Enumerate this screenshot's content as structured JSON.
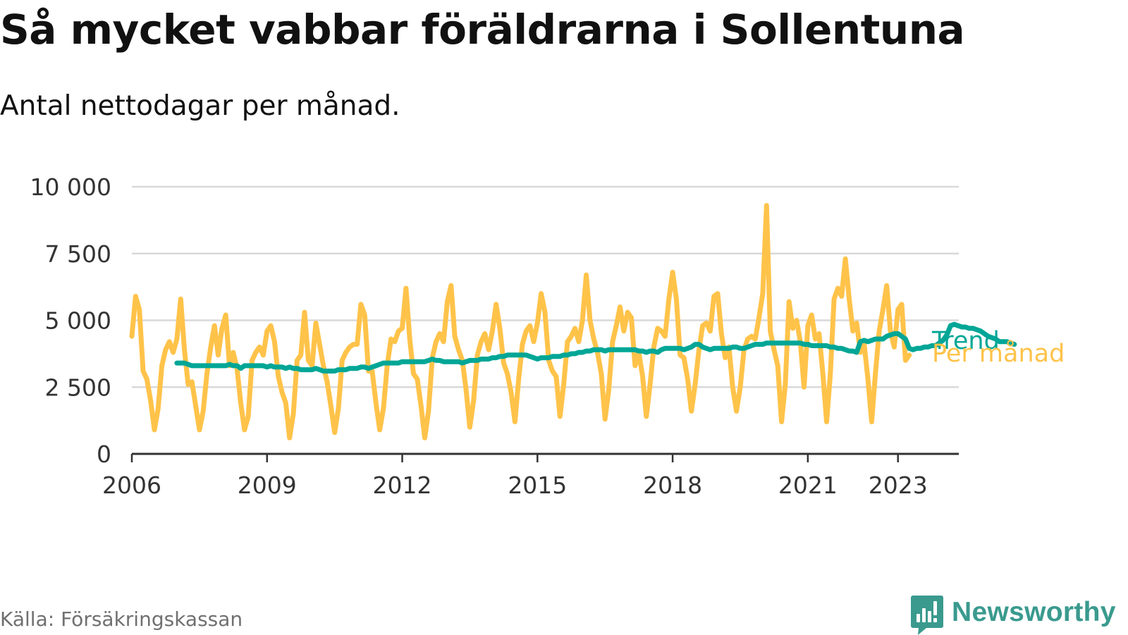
{
  "title": "Så mycket vabbar föräldrarna i Sollentuna",
  "subtitle": "Antal nettodagar per månad.",
  "source": "Källa: Försäkringskassan",
  "brand": "Newsworthy",
  "colors": {
    "monthly": "#ffc34a",
    "trend": "#00a696",
    "grid": "#d9d9d9",
    "axis": "#333333",
    "brand": "#3a9a8e"
  },
  "chart_data": {
    "type": "line",
    "title": "Så mycket vabbar föräldrarna i Sollentuna",
    "subtitle": "Antal nettodagar per månad.",
    "xlabel": "",
    "ylabel": "",
    "ylim": [
      0,
      10000
    ],
    "yticks": [
      0,
      2500,
      5000,
      7500,
      10000
    ],
    "ytick_labels": [
      "0",
      "2 500",
      "5 000",
      "7 500",
      "10 000"
    ],
    "xticks": [
      2006,
      2009,
      2012,
      2015,
      2018,
      2021,
      2023
    ],
    "xtick_labels": [
      "2006",
      "2009",
      "2012",
      "2015",
      "2018",
      "2021",
      "2023"
    ],
    "grid": true,
    "legend": "inline labels at right end of series",
    "series": [
      {
        "name": "Per månad",
        "color": "#ffc34a",
        "x_start": "2006-01",
        "step": "month",
        "values": [
          4400,
          5900,
          5400,
          3100,
          2800,
          2000,
          900,
          1700,
          3300,
          3900,
          4200,
          3800,
          4300,
          5800,
          3900,
          2600,
          2700,
          1800,
          900,
          1600,
          3000,
          4000,
          4800,
          3700,
          4700,
          5200,
          3300,
          3800,
          3200,
          1900,
          900,
          1400,
          3500,
          3800,
          4000,
          3700,
          4600,
          4800,
          4200,
          2900,
          2300,
          1900,
          600,
          1500,
          3500,
          3700,
          5300,
          3500,
          3300,
          4900,
          4100,
          3300,
          2700,
          1800,
          800,
          1700,
          3500,
          3800,
          4000,
          4100,
          4100,
          5600,
          5200,
          3100,
          3100,
          1900,
          900,
          1700,
          3300,
          4300,
          4200,
          4600,
          4700,
          6200,
          4300,
          3000,
          2800,
          1800,
          600,
          1600,
          3600,
          4200,
          4500,
          4200,
          5700,
          6300,
          4400,
          3900,
          3500,
          2400,
          1000,
          2000,
          3700,
          4200,
          4500,
          3900,
          4600,
          5600,
          4700,
          3400,
          3000,
          2300,
          1200,
          2800,
          4100,
          4600,
          4800,
          4200,
          4900,
          6000,
          5300,
          3500,
          3100,
          2900,
          1400,
          2600,
          4200,
          4400,
          4700,
          4200,
          5000,
          6700,
          5000,
          4300,
          3800,
          3000,
          1300,
          2400,
          4200,
          4800,
          5500,
          4600,
          5300,
          5100,
          3300,
          3800,
          2900,
          1400,
          2600,
          4000,
          4700,
          4600,
          4400,
          5800,
          6800,
          5800,
          3700,
          3600,
          2800,
          1600,
          2600,
          3900,
          4800,
          4900,
          4600,
          5900,
          6000,
          4500,
          3600,
          4000,
          2500,
          1600,
          2500,
          3900,
          4300,
          4400,
          4300,
          5100,
          6000,
          9300,
          4600,
          3900,
          3300,
          1200,
          2600,
          5700,
          4700,
          5000,
          4200,
          2500,
          4800,
          5200,
          4300,
          4500,
          3000,
          1200,
          3000,
          5800,
          6200,
          5900,
          7300,
          5800,
          4600,
          4900,
          3800,
          4100,
          2800,
          1200,
          3000,
          4600,
          5400,
          6300,
          4600,
          4000,
          5400,
          5600,
          3500,
          3700
        ]
      },
      {
        "name": "Trend",
        "color": "#00a696",
        "x_start": "2007-01",
        "step": "month",
        "values": [
          3400,
          3400,
          3400,
          3350,
          3300,
          3300,
          3300,
          3300,
          3300,
          3300,
          3300,
          3300,
          3300,
          3300,
          3350,
          3300,
          3300,
          3200,
          3300,
          3300,
          3300,
          3300,
          3300,
          3300,
          3250,
          3300,
          3250,
          3250,
          3250,
          3200,
          3250,
          3200,
          3200,
          3150,
          3150,
          3150,
          3150,
          3200,
          3150,
          3100,
          3100,
          3100,
          3100,
          3150,
          3150,
          3150,
          3200,
          3200,
          3200,
          3250,
          3250,
          3200,
          3250,
          3300,
          3350,
          3400,
          3400,
          3400,
          3400,
          3400,
          3450,
          3450,
          3450,
          3450,
          3450,
          3450,
          3450,
          3500,
          3550,
          3500,
          3500,
          3450,
          3450,
          3450,
          3450,
          3450,
          3400,
          3450,
          3500,
          3500,
          3500,
          3550,
          3550,
          3550,
          3600,
          3600,
          3650,
          3650,
          3700,
          3700,
          3700,
          3700,
          3700,
          3700,
          3650,
          3600,
          3550,
          3600,
          3600,
          3600,
          3650,
          3650,
          3650,
          3700,
          3700,
          3750,
          3750,
          3800,
          3800,
          3850,
          3850,
          3900,
          3900,
          3900,
          3850,
          3900,
          3900,
          3900,
          3900,
          3900,
          3900,
          3900,
          3900,
          3850,
          3850,
          3800,
          3850,
          3850,
          3800,
          3900,
          3950,
          3950,
          3950,
          3950,
          3950,
          3900,
          3950,
          4000,
          4100,
          4100,
          4000,
          3950,
          3900,
          3950,
          3950,
          3950,
          3950,
          3950,
          4000,
          4000,
          3950,
          3950,
          4000,
          4050,
          4100,
          4100,
          4100,
          4150,
          4150,
          4150,
          4150,
          4150,
          4150,
          4150,
          4150,
          4150,
          4150,
          4100,
          4100,
          4050,
          4050,
          4050,
          4050,
          4050,
          4000,
          4000,
          3950,
          3950,
          3900,
          3850,
          3850,
          3800,
          4200,
          4250,
          4200,
          4250,
          4300,
          4300,
          4300,
          4400,
          4450,
          4500,
          4500,
          4400,
          4300,
          3950,
          3900,
          3950,
          3950,
          4000,
          4000,
          4050,
          4050,
          4150,
          4250,
          4450,
          4800,
          4850,
          4800,
          4750,
          4750,
          4700,
          4700,
          4650,
          4600,
          4500,
          4400,
          4350,
          4300,
          4200,
          4200,
          4200,
          4150,
          4100
        ]
      }
    ]
  }
}
